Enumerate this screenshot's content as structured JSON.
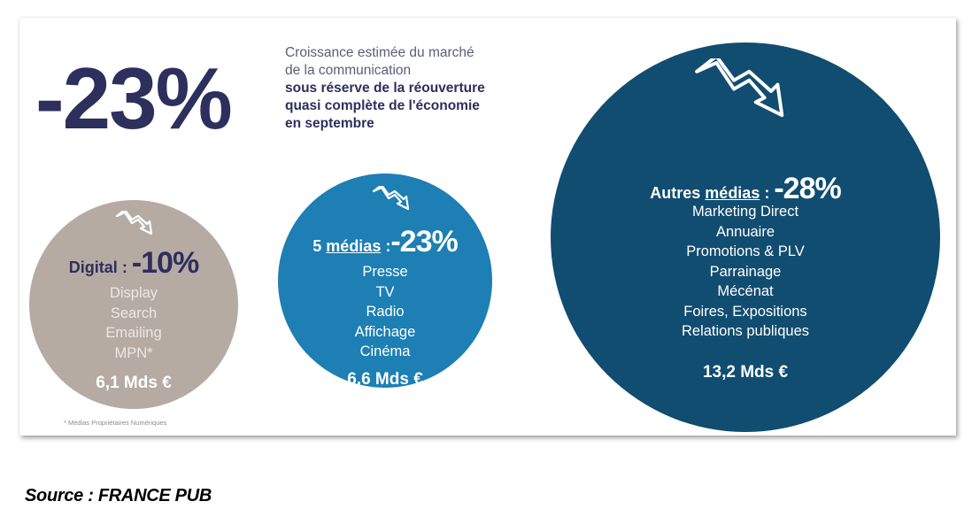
{
  "headline": {
    "value": "-23%",
    "line1": "Croissance estimée du marché",
    "line2": "de la communication",
    "line3": "sous réserve de la réouverture",
    "line4": "quasi complète de l'économie",
    "line5": "en septembre"
  },
  "colors": {
    "navy": "#2d2f5d",
    "digital_circle": "#b6aba3",
    "five_media_circle": "#1d7fb3",
    "other_media_circle": "#114d70"
  },
  "digital": {
    "name": "Digital",
    "sep": " : ",
    "pct": "-10%",
    "items": [
      "Display",
      "Search",
      "Emailing",
      "MPN*"
    ],
    "total": "6,1 Mds €",
    "icon": "trend-down-arrow-icon"
  },
  "five_media": {
    "name_prefix": "5 ",
    "name_under": "médias",
    "sep": " :",
    "pct": "-23%",
    "items": [
      "Presse",
      "TV",
      "Radio",
      "Affichage",
      "Cinéma"
    ],
    "total": "6,6 Mds €",
    "icon": "trend-down-arrow-icon"
  },
  "other_media": {
    "name_prefix": "Autres ",
    "name_under": "médias",
    "sep": " : ",
    "pct": "-28%",
    "items": [
      "Marketing Direct",
      "Annuaire",
      "Promotions & PLV",
      "Parrainage",
      "Mécénat",
      "Foires, Expositions",
      "Relations publiques"
    ],
    "total": "13,2 Mds €",
    "icon": "trend-down-arrow-icon"
  },
  "footnote": "* Médias Propriétaires Numériques",
  "source": "Source : FRANCE PUB"
}
